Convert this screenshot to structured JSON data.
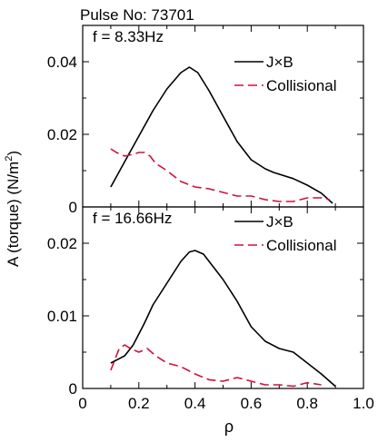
{
  "figure": {
    "pulse_label": "Pulse No: 73701",
    "ylabel": "A (torque) (N/m",
    "ylabel_sup": "2",
    "ylabel_close": ")",
    "xlabel": "ρ"
  },
  "chart_data": [
    {
      "type": "line",
      "annotation": "f = 8.33Hz",
      "xlim": [
        0,
        1.0
      ],
      "ylim": [
        0,
        0.05
      ],
      "x_ticks": [
        "0",
        "0.2",
        "0.4",
        "0.6",
        "0.8",
        "1.0"
      ],
      "y_ticks": [
        {
          "value": 0,
          "label": "0"
        },
        {
          "value": 0.02,
          "label": "0.02"
        },
        {
          "value": 0.04,
          "label": "0.04"
        }
      ],
      "grid": false,
      "legend_position": "top-right",
      "series": [
        {
          "name": "J×B",
          "style": "solid",
          "color": "#000000",
          "x": [
            0.1,
            0.15,
            0.2,
            0.25,
            0.3,
            0.35,
            0.38,
            0.41,
            0.45,
            0.5,
            0.55,
            0.6,
            0.65,
            0.68,
            0.75,
            0.8,
            0.85,
            0.89
          ],
          "y": [
            0.0055,
            0.0125,
            0.0195,
            0.0265,
            0.0325,
            0.037,
            0.0385,
            0.037,
            0.032,
            0.025,
            0.018,
            0.013,
            0.0105,
            0.0095,
            0.0078,
            0.006,
            0.0038,
            0.001
          ]
        },
        {
          "name": "Collisional",
          "style": "dashed",
          "color": "#d0103a",
          "x": [
            0.1,
            0.12,
            0.15,
            0.18,
            0.2,
            0.22,
            0.24,
            0.26,
            0.3,
            0.35,
            0.4,
            0.45,
            0.5,
            0.55,
            0.6,
            0.65,
            0.7,
            0.75,
            0.8,
            0.85,
            0.88
          ],
          "y": [
            0.016,
            0.015,
            0.014,
            0.0145,
            0.015,
            0.015,
            0.014,
            0.012,
            0.01,
            0.007,
            0.0055,
            0.005,
            0.004,
            0.003,
            0.003,
            0.002,
            0.0015,
            0.0015,
            0.0025,
            0.0025,
            0.002
          ]
        }
      ]
    },
    {
      "type": "line",
      "annotation": "f = 16.66Hz",
      "xlim": [
        0,
        1.0
      ],
      "ylim": [
        0,
        0.025
      ],
      "x_ticks": [
        "0",
        "0.2",
        "0.4",
        "0.6",
        "0.8",
        "1.0"
      ],
      "y_ticks": [
        {
          "value": 0,
          "label": "0"
        },
        {
          "value": 0.01,
          "label": "0.01"
        },
        {
          "value": 0.02,
          "label": "0.02"
        }
      ],
      "grid": false,
      "legend_position": "top-right",
      "series": [
        {
          "name": "J×B",
          "style": "solid",
          "color": "#000000",
          "x": [
            0.1,
            0.15,
            0.18,
            0.22,
            0.25,
            0.3,
            0.35,
            0.38,
            0.4,
            0.43,
            0.45,
            0.5,
            0.55,
            0.6,
            0.65,
            0.7,
            0.75,
            0.8,
            0.85,
            0.9
          ],
          "y": [
            0.0035,
            0.0045,
            0.006,
            0.009,
            0.0115,
            0.0145,
            0.0175,
            0.0188,
            0.019,
            0.0185,
            0.0175,
            0.015,
            0.012,
            0.0085,
            0.0065,
            0.0055,
            0.005,
            0.0035,
            0.002,
            0.0003
          ]
        },
        {
          "name": "Collisional",
          "style": "dashed",
          "color": "#d0103a",
          "x": [
            0.1,
            0.13,
            0.15,
            0.17,
            0.2,
            0.23,
            0.26,
            0.3,
            0.35,
            0.4,
            0.45,
            0.5,
            0.55,
            0.6,
            0.65,
            0.7,
            0.75,
            0.8,
            0.85
          ],
          "y": [
            0.0025,
            0.0055,
            0.006,
            0.0055,
            0.005,
            0.0055,
            0.0045,
            0.0035,
            0.003,
            0.002,
            0.0012,
            0.001,
            0.0015,
            0.001,
            0.0005,
            0.0005,
            0.0003,
            0.0008,
            0.0005
          ]
        }
      ]
    }
  ]
}
